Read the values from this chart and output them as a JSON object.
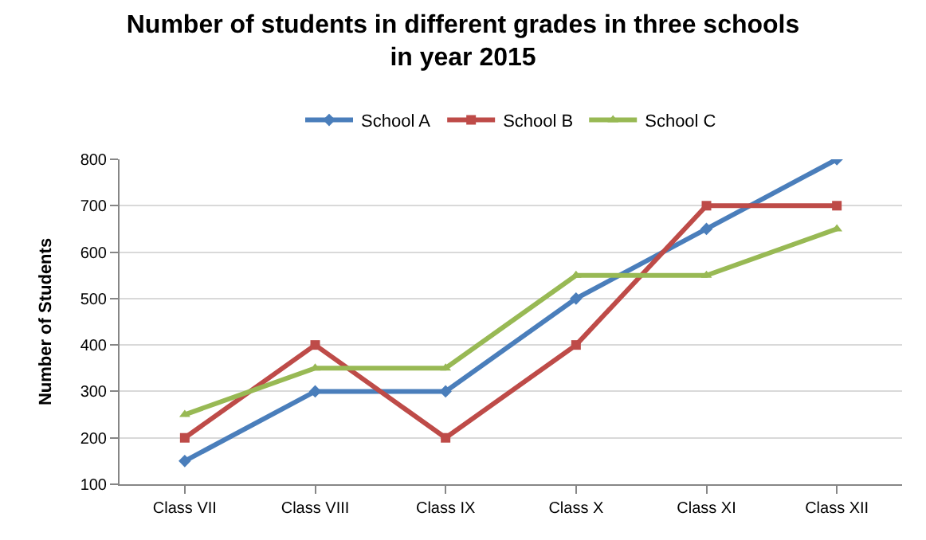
{
  "chart_data": {
    "type": "line",
    "title": "Number of students in different grades in three schools in year 2015",
    "ylabel": "Number of Students",
    "categories": [
      "Class VII",
      "Class VIII",
      "Class IX",
      "Class X",
      "Class XI",
      "Class XII"
    ],
    "series": [
      {
        "name": "School A",
        "color": "#4a7ebb",
        "marker": "diamond",
        "values": [
          150,
          300,
          300,
          500,
          650,
          800
        ]
      },
      {
        "name": "School B",
        "color": "#be4b48",
        "marker": "square",
        "values": [
          200,
          400,
          200,
          400,
          700,
          700
        ]
      },
      {
        "name": "School C",
        "color": "#98b954",
        "marker": "triangle",
        "values": [
          250,
          350,
          350,
          550,
          550,
          650
        ]
      }
    ],
    "ylim": [
      100,
      800
    ],
    "yticks": [
      100,
      200,
      300,
      400,
      500,
      600,
      700,
      800
    ],
    "grid": "y",
    "legend": "top",
    "line_style": "solid"
  }
}
